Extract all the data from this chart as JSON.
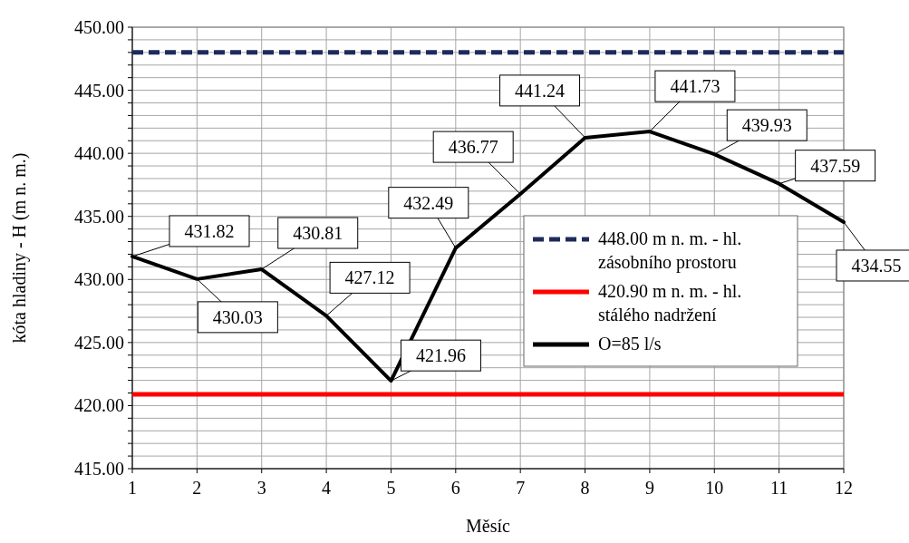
{
  "chart_data": {
    "type": "line",
    "xlabel": "Měsíc",
    "ylabel": "kóta hladiny - H (m n. m.)",
    "x": [
      1,
      2,
      3,
      4,
      5,
      6,
      7,
      8,
      9,
      10,
      11,
      12
    ],
    "series": [
      {
        "name": "O=85 l/s",
        "color": "#000000",
        "values": [
          431.82,
          430.03,
          430.81,
          427.12,
          421.96,
          432.49,
          436.77,
          441.24,
          441.73,
          439.93,
          437.59,
          434.55
        ]
      }
    ],
    "data_labels": true,
    "xlim": [
      1,
      12
    ],
    "xticks": [
      1,
      2,
      3,
      4,
      5,
      6,
      7,
      8,
      9,
      10,
      11,
      12
    ],
    "ylim": [
      415,
      450
    ],
    "yticks": [
      {
        "value": 415,
        "label": "415.00"
      },
      {
        "value": 416,
        "label": null
      },
      {
        "value": 417,
        "label": null
      },
      {
        "value": 418,
        "label": null
      },
      {
        "value": 419,
        "label": null
      },
      {
        "value": 420,
        "label": "420.00"
      },
      {
        "value": 421,
        "label": null
      },
      {
        "value": 422,
        "label": null
      },
      {
        "value": 423,
        "label": null
      },
      {
        "value": 424,
        "label": null
      },
      {
        "value": 425,
        "label": "425.00"
      },
      {
        "value": 426,
        "label": null
      },
      {
        "value": 427,
        "label": null
      },
      {
        "value": 428,
        "label": null
      },
      {
        "value": 429,
        "label": null
      },
      {
        "value": 430,
        "label": "430.00"
      },
      {
        "value": 431,
        "label": null
      },
      {
        "value": 432,
        "label": null
      },
      {
        "value": 433,
        "label": null
      },
      {
        "value": 434,
        "label": null
      },
      {
        "value": 435,
        "label": "435.00"
      },
      {
        "value": 436,
        "label": null
      },
      {
        "value": 437,
        "label": null
      },
      {
        "value": 438,
        "label": null
      },
      {
        "value": 439,
        "label": null
      },
      {
        "value": 440,
        "label": "440.00"
      },
      {
        "value": 441,
        "label": null
      },
      {
        "value": 442,
        "label": null
      },
      {
        "value": 443,
        "label": null
      },
      {
        "value": 444,
        "label": null
      },
      {
        "value": 445,
        "label": "445.00"
      },
      {
        "value": 446,
        "label": null
      },
      {
        "value": 447,
        "label": null
      },
      {
        "value": 448,
        "label": null
      },
      {
        "value": 449,
        "label": null
      },
      {
        "value": 450,
        "label": "450.00"
      }
    ],
    "ref_lines": [
      {
        "axis": "y",
        "value": 448.0,
        "label": "448.00 m n. m. - hl. zásobního prostoru",
        "color": "#1f2a5c",
        "line_style": "dashed"
      },
      {
        "axis": "y",
        "value": 420.9,
        "label": "420.90 m n. m. - hl. stálého nadržení",
        "color": "#ff0000",
        "line_style": "solid"
      }
    ],
    "grid": true,
    "legend": "right",
    "marker": "none",
    "line_style": "solid"
  }
}
